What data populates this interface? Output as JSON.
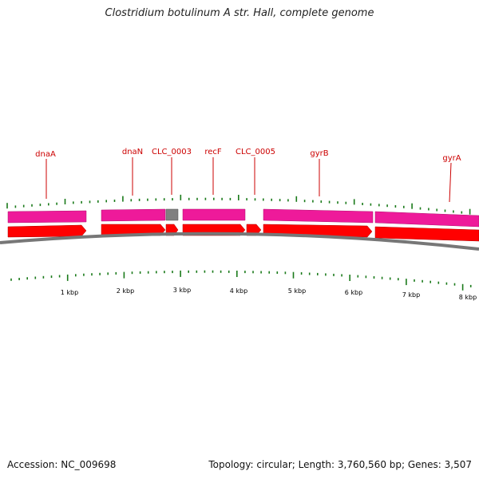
{
  "title": "Clostridium botulinum A str. Hall, complete genome",
  "footer": {
    "accession": "Accession: NC_009698",
    "summary": "Topology: circular; Length: 3,760,560 bp; Genes: 3,507"
  },
  "colors": {
    "gene_label": "#cc0000",
    "cds_track": "#ff0000",
    "gene_track": "#ee1a9a",
    "other_feature": "#808080",
    "tick": "#1a7a1a",
    "backbone": "#777777"
  },
  "features": {
    "gene_labels": [
      {
        "id": "dnaA",
        "text": "dnaA"
      },
      {
        "id": "dnaN",
        "text": "dnaN"
      },
      {
        "id": "CLC_0003",
        "text": "CLC_0003"
      },
      {
        "id": "recF",
        "text": "recF"
      },
      {
        "id": "CLC_0005",
        "text": "CLC_0005"
      },
      {
        "id": "gyrB",
        "text": "gyrB"
      },
      {
        "id": "gyrA",
        "text": "gyrA"
      }
    ]
  },
  "scale": {
    "labels": [
      "1 kbp",
      "2 kbp",
      "3 kbp",
      "4 kbp",
      "5 kbp",
      "6 kbp",
      "7 kbp",
      "8 kbp"
    ]
  }
}
